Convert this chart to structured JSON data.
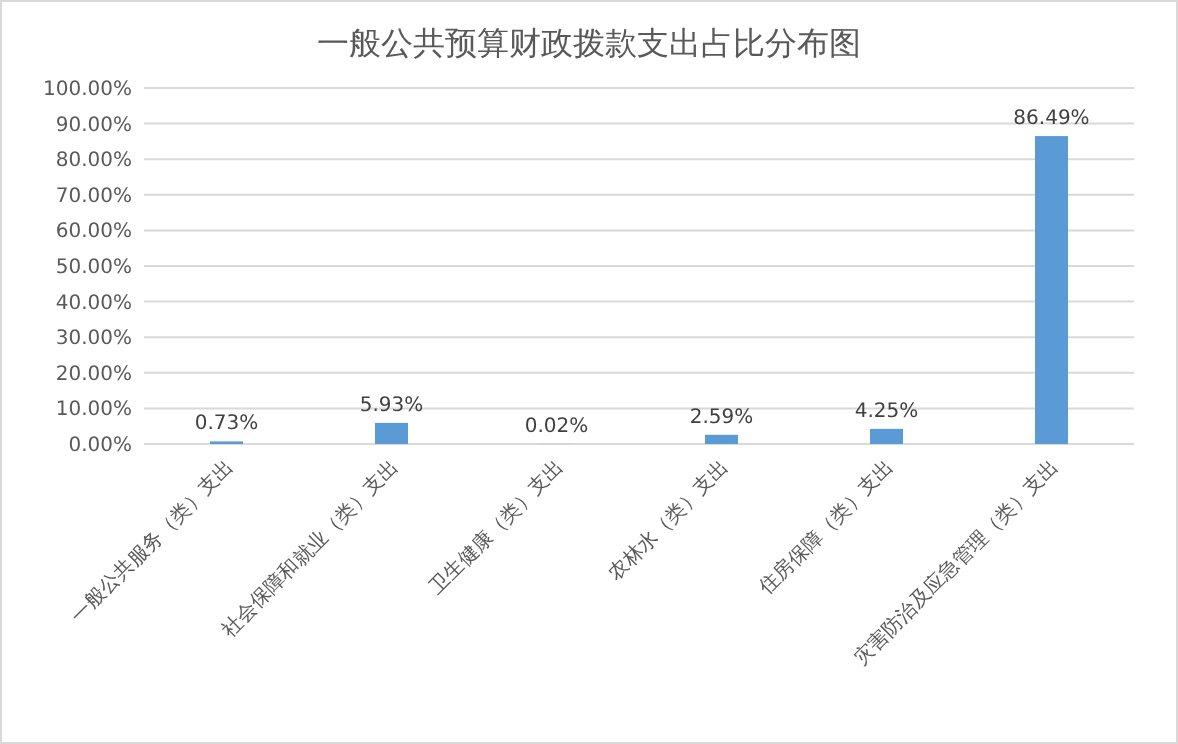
{
  "chart_data": {
    "type": "bar",
    "title": "一般公共预算财政拨款支出占比分布图",
    "categories": [
      "一般公共服务（类）支出",
      "社会保障和就业（类）支出",
      "卫生健康（类）支出",
      "农林水（类）支出",
      "住房保障（类）支出",
      "灾害防治及应急管理（类）支出"
    ],
    "values": [
      0.73,
      5.93,
      0.02,
      2.59,
      4.25,
      86.49
    ],
    "value_labels": [
      "0.73%",
      "5.93%",
      "0.02%",
      "2.59%",
      "4.25%",
      "86.49%"
    ],
    "color": "#5b9bd5",
    "ylim": [
      0,
      100
    ],
    "yticks": [
      {
        "value": 0,
        "label": "0.00%"
      },
      {
        "value": 10,
        "label": "10.00%"
      },
      {
        "value": 20,
        "label": "20.00%"
      },
      {
        "value": 30,
        "label": "30.00%"
      },
      {
        "value": 40,
        "label": "40.00%"
      },
      {
        "value": 50,
        "label": "50.00%"
      },
      {
        "value": 60,
        "label": "60.00%"
      },
      {
        "value": 70,
        "label": "70.00%"
      },
      {
        "value": 80,
        "label": "80.00%"
      },
      {
        "value": 90,
        "label": "90.00%"
      },
      {
        "value": 100,
        "label": "100.00%"
      }
    ],
    "grid": "y"
  }
}
